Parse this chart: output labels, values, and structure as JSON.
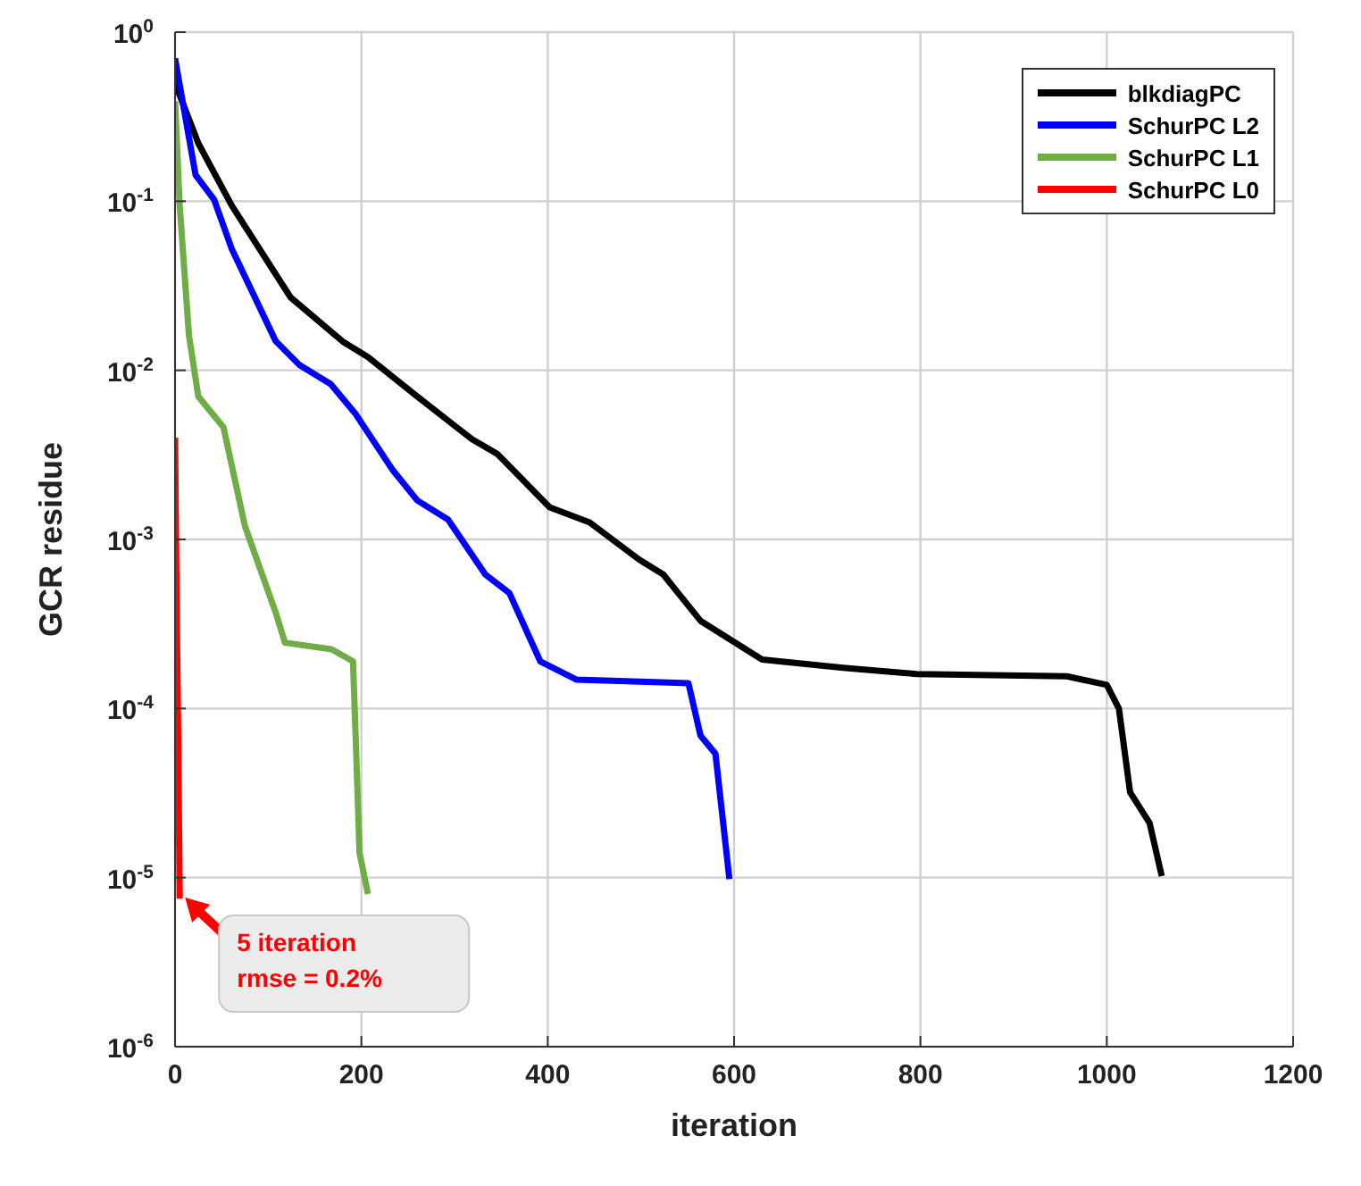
{
  "chart_data": {
    "type": "line",
    "xlabel": "iteration",
    "ylabel": "GCR residue",
    "log": "y",
    "grid": true,
    "legend": "top right",
    "marker": "none",
    "line_style": "solid",
    "xlim": [
      0,
      1200
    ],
    "xticks": [
      0,
      200,
      400,
      600,
      800,
      1000,
      1200
    ],
    "ylim": [
      1e-06,
      1
    ],
    "yticks": [
      {
        "value": 1e-06,
        "label": "10$^{-6}$"
      },
      {
        "value": 1e-05,
        "label": "10$^{-5}$"
      },
      {
        "value": 0.0001,
        "label": "10$^{-4}$"
      },
      {
        "value": 0.001,
        "label": "10$^{-3}$"
      },
      {
        "value": 0.01,
        "label": "10$^{-2}$"
      },
      {
        "value": 0.1,
        "label": "10$^{-1}$"
      },
      {
        "value": 1,
        "label": "10$^{0}$"
      }
    ],
    "annotations": [
      {
        "text": "5 iteration\nrmse = 0.2%",
        "x": 5,
        "y": 8e-06
      }
    ],
    "series": [
      {
        "name": "blkdiagPC",
        "color": "#000000",
        "x": [
          0,
          25,
          61,
          124,
          180,
          207,
          260,
          319,
          346,
          402,
          445,
          498,
          524,
          564,
          630,
          717,
          796,
          957,
          1000,
          1013,
          1025,
          1046,
          1059
        ],
        "values": [
          0.5,
          0.22,
          0.094,
          0.027,
          0.0148,
          0.012,
          0.007,
          0.0039,
          0.0032,
          0.00155,
          0.00126,
          0.00076,
          0.00062,
          0.00033,
          0.000195,
          0.000174,
          0.00016,
          0.000155,
          0.000138,
          0.0001,
          3.2e-05,
          2.1e-05,
          1.02e-05
        ]
      },
      {
        "name": "SchurPC L2",
        "color": "#0000ff",
        "x": [
          0,
          22,
          42,
          61,
          108,
          134,
          167,
          194,
          233,
          260,
          293,
          333,
          359,
          392,
          431,
          551,
          564,
          580,
          595
        ],
        "values": [
          0.7,
          0.143,
          0.102,
          0.052,
          0.0149,
          0.0107,
          0.0083,
          0.0055,
          0.0026,
          0.0017,
          0.00131,
          0.00062,
          0.00048,
          0.00019,
          0.000148,
          0.000141,
          6.9e-05,
          5.4e-05,
          9.8e-06
        ]
      },
      {
        "name": "SchurPC L1",
        "color": "#70ad47",
        "x": [
          0,
          5,
          15,
          25,
          52,
          75,
          108,
          118,
          168,
          191,
          194,
          198,
          207
        ],
        "values": [
          0.39,
          0.094,
          0.016,
          0.007,
          0.0046,
          0.0012,
          0.00037,
          0.000245,
          0.000224,
          0.00019,
          6.5e-05,
          1.4e-05,
          8e-06
        ]
      },
      {
        "name": "SchurPC L0",
        "color": "#ff0000",
        "x": [
          0,
          1,
          2,
          3,
          4,
          5
        ],
        "values": [
          0.004,
          0.001,
          0.0003,
          0.0001,
          3e-05,
          7.5e-06
        ]
      }
    ]
  }
}
